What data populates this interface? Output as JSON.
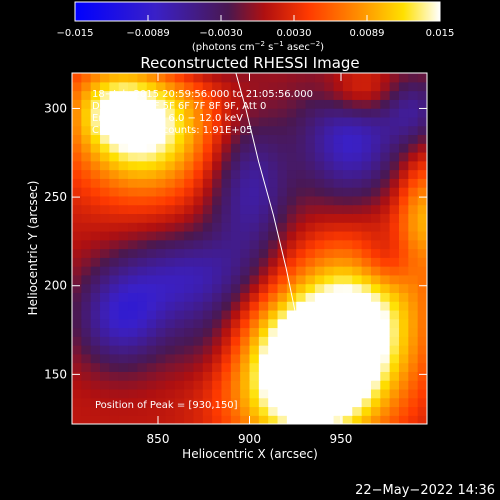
{
  "chart_data": {
    "type": "heatmap",
    "title": "Reconstructed RHESSI Image",
    "xlabel": "Heliocentric X (arcsec)",
    "ylabel": "Heliocentric Y (arcsec)",
    "xlim": [
      803,
      997
    ],
    "ylim": [
      122,
      320
    ],
    "xticks": [
      850,
      900,
      950
    ],
    "yticks": [
      150,
      200,
      250,
      300
    ],
    "colorbar": {
      "range": [
        -0.015,
        0.015
      ],
      "ticks": [
        "−0.015",
        "−0.0089",
        "−0.0030",
        "0.0030",
        "0.0089",
        "0.015"
      ],
      "unit_label": "(photons cm",
      "unit_exp1": "−2",
      "unit_mid": " s",
      "unit_exp2": "−1",
      "unit_mid2": " asec",
      "unit_exp3": "−2",
      "unit_end": ")",
      "colormap": "blue-purple-red-orange-yellow-white"
    },
    "annotations": {
      "time_range": "18−Jul−2015 20:59:56.000 to 21:05:56.000",
      "detectors": "Detectors: 3F 5F 6F 7F 8F 9F, Att 0",
      "energy": "Energy Range: 6.0 − 12.0 keV",
      "clean": "Clean     Total counts: 1.91E+05",
      "peak": "Position of Peak = [930,150]"
    },
    "peak": {
      "x": 930,
      "y": 150
    },
    "limb_curve": [
      [
        892,
        322
      ],
      [
        898,
        300
      ],
      [
        905,
        270
      ],
      [
        913,
        240
      ],
      [
        920,
        210
      ],
      [
        926,
        180
      ],
      [
        932,
        150
      ],
      [
        936,
        122
      ]
    ],
    "blobs": [
      {
        "x": 932,
        "y": 152,
        "sx": 28,
        "sy": 30,
        "amp": 0.0215
      },
      {
        "x": 962,
        "y": 185,
        "sx": 25,
        "sy": 30,
        "amp": 0.011
      },
      {
        "x": 842,
        "y": 290,
        "sx": 26,
        "sy": 26,
        "amp": 0.015
      },
      {
        "x": 960,
        "y": 310,
        "sx": 15,
        "sy": 12,
        "amp": 0.007
      },
      {
        "x": 995,
        "y": 240,
        "sx": 10,
        "sy": 22,
        "amp": 0.008
      },
      {
        "x": 825,
        "y": 300,
        "sx": 14,
        "sy": 14,
        "amp": 0.005
      },
      {
        "x": 880,
        "y": 168,
        "sx": 18,
        "sy": 18,
        "amp": -0.004
      },
      {
        "x": 830,
        "y": 182,
        "sx": 18,
        "sy": 20,
        "amp": -0.009
      },
      {
        "x": 868,
        "y": 205,
        "sx": 26,
        "sy": 18,
        "amp": -0.008
      },
      {
        "x": 900,
        "y": 255,
        "sx": 16,
        "sy": 30,
        "amp": -0.008
      },
      {
        "x": 955,
        "y": 285,
        "sx": 20,
        "sy": 28,
        "amp": -0.01
      },
      {
        "x": 990,
        "y": 300,
        "sx": 12,
        "sy": 14,
        "amp": -0.006
      },
      {
        "x": 975,
        "y": 215,
        "sx": 12,
        "sy": 12,
        "amp": -0.004
      },
      {
        "x": 868,
        "y": 325,
        "sx": 22,
        "sy": 10,
        "amp": -0.004
      }
    ]
  },
  "footer": {
    "timestamp": "22−May−2022 14:36"
  }
}
